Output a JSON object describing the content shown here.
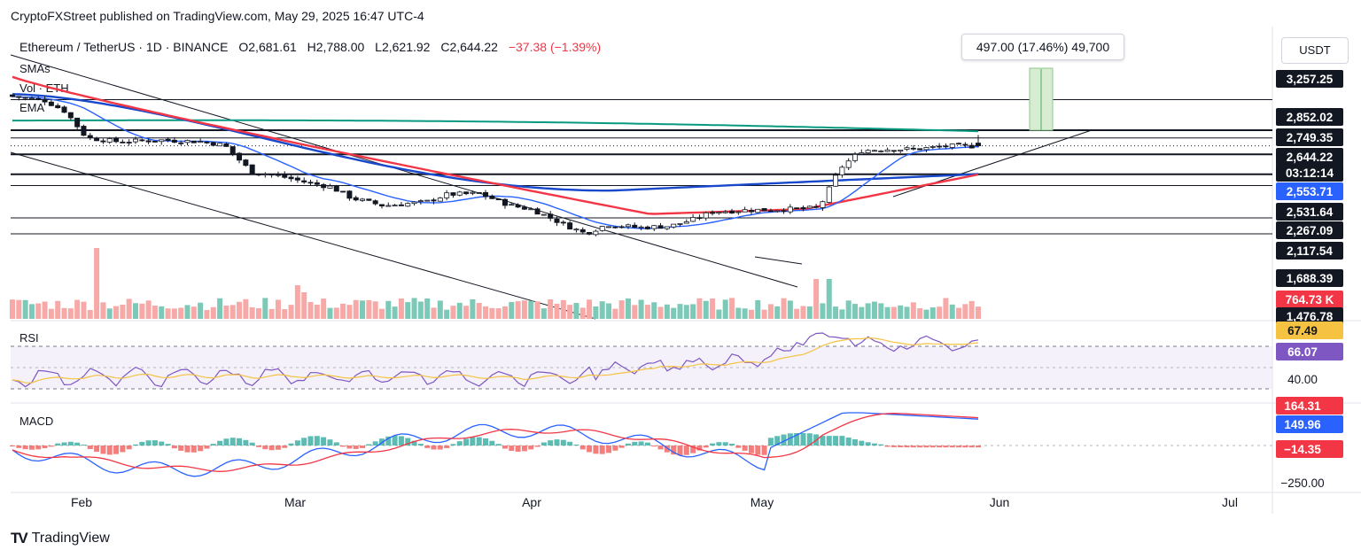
{
  "attribution": "CryptoFXStreet published on TradingView.com, May 29, 2025 16:47 UTC-4",
  "legend": {
    "symbol": "Ethereum / TetherUS · 1D · BINANCE",
    "open": "O2,681.61",
    "high": "H2,788.00",
    "low": "L2,621.92",
    "close": "C2,644.22",
    "change": "−37.38 (−1.39%)",
    "change_color": "#f23645"
  },
  "indicator_labels": {
    "smas": "SMAs",
    "vol": "Vol · ETH",
    "ema": "EMA",
    "rsi": "RSI",
    "macd": "MACD"
  },
  "measure_tooltip": "497.00 (17.46%) 49,700",
  "unit_button": "USDT",
  "brand": "TradingView",
  "colors": {
    "up": "#089981",
    "down": "#f23645",
    "sma_fast": "#2962ff",
    "sma_slow": "#1848cc",
    "ema_red": "#f23645",
    "ema_green": "#089981",
    "rsi": "#7e57c2",
    "rsi_ma": "#f5c242",
    "macd": "#2962ff",
    "signal": "#f23645"
  },
  "chart_data": {
    "type": "candlestick",
    "title": "Ethereum / TetherUS · 1D · BINANCE",
    "x_axis": {
      "ticks": [
        "Feb",
        "Mar",
        "Apr",
        "May",
        "Jun",
        "Jul"
      ]
    },
    "price_labels": [
      {
        "value": "3,257.25",
        "bg": "#131722"
      },
      {
        "value": "2,852.02",
        "bg": "#131722"
      },
      {
        "value": "2,749.35",
        "bg": "#131722"
      },
      {
        "value": "2,644.22",
        "bg": "#131722"
      },
      {
        "value": "03:12:14",
        "bg": "#131722"
      },
      {
        "value": "2,553.71",
        "bg": "#2962ff"
      },
      {
        "value": "2,531.64",
        "bg": "#131722"
      },
      {
        "value": "2,267.09",
        "bg": "#131722"
      },
      {
        "value": "2,117.54",
        "bg": "#131722"
      },
      {
        "value": "1,688.39",
        "bg": "#131722"
      },
      {
        "value": "764.73 K",
        "bg": "#f23645"
      },
      {
        "value": "1,476.78",
        "bg": "#131722"
      }
    ],
    "horizontal_levels": [
      3257.25,
      2852.02,
      2749.35,
      2531.64,
      2267.09,
      2117.54,
      1688.39,
      1476.78
    ],
    "series_note": "Daily OHLC candles Jan 2025 – May 29 2025 with SMA/EMA overlays and volume",
    "candles_summary": {
      "last": {
        "open": 2681.61,
        "high": 2788.0,
        "low": 2621.92,
        "close": 2644.22
      }
    },
    "rsi": {
      "values_labels": [
        "67.49",
        "66.07",
        "40.00"
      ],
      "label_colors": [
        "#f5c242",
        "#7e57c2",
        "#ffffff"
      ]
    },
    "macd": {
      "values_labels": [
        "164.31",
        "149.96",
        "−14.35",
        "−250.00"
      ],
      "label_colors": [
        "#f23645",
        "#2962ff",
        "#f23645",
        "#ffffff"
      ]
    }
  }
}
